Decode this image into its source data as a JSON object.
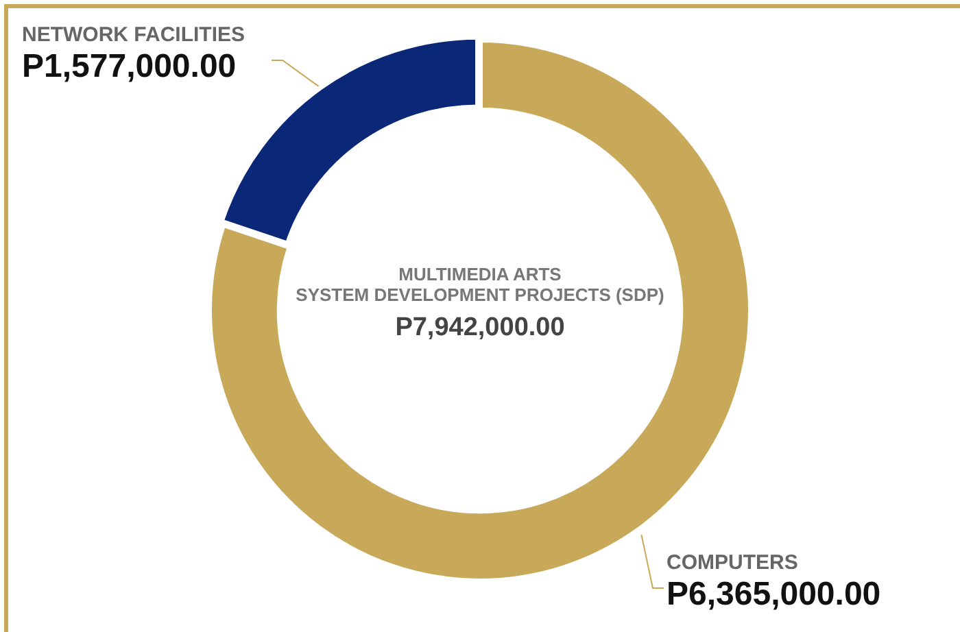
{
  "chart_data": {
    "type": "donut",
    "title": "MULTIMEDIA ARTS",
    "subtitle": "SYSTEM DEVELOPMENT PROJECTS (SDP)",
    "annotations": [
      "P7,942,000.00"
    ],
    "categories": [
      "COMPUTERS",
      "NETWORK FACILITIES"
    ],
    "values": [
      6365000,
      1577000
    ],
    "value_labels": [
      "P6,365,000.00",
      "P1,577,000.00"
    ],
    "colors": [
      "#c8a95a",
      "#0b2778"
    ],
    "legend": false
  }
}
